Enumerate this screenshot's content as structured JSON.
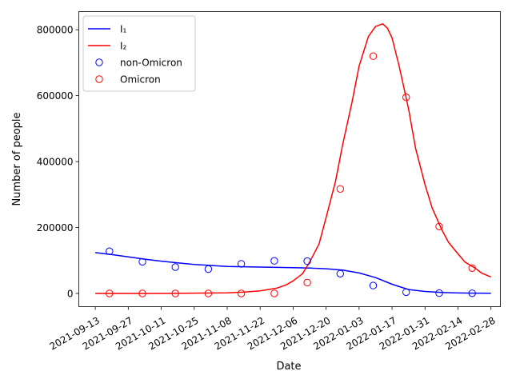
{
  "chart_data": {
    "type": "line",
    "xlabel": "Date",
    "ylabel": "Number of people",
    "xlim": [
      "2021-09-06",
      "2022-03-04"
    ],
    "ylim": [
      -40000,
      855000
    ],
    "x_ticks": [
      "2021-09-13",
      "2021-09-27",
      "2021-10-11",
      "2021-10-25",
      "2021-11-08",
      "2021-11-22",
      "2021-12-06",
      "2021-12-20",
      "2022-01-03",
      "2022-01-17",
      "2022-01-31",
      "2022-02-14",
      "2022-02-28"
    ],
    "y_ticks": [
      0,
      200000,
      400000,
      600000,
      800000
    ],
    "y_tick_labels": [
      "0",
      "200000",
      "400000",
      "600000",
      "800000"
    ],
    "grid": false,
    "legend_position": "upper-left",
    "legend": [
      {
        "label": "I₁",
        "marker": "line",
        "color": "#0000ff"
      },
      {
        "label": "I₂",
        "marker": "line",
        "color": "#ff0000"
      },
      {
        "label": "non-Omicron",
        "marker": "circle",
        "color": "#0000ff"
      },
      {
        "label": "Omicron",
        "marker": "circle",
        "color": "#ff0000"
      }
    ],
    "series": [
      {
        "name": "I₁",
        "kind": "line",
        "color": "#0000ff",
        "x": [
          "2021-09-13",
          "2021-09-20",
          "2021-09-27",
          "2021-10-04",
          "2021-10-11",
          "2021-10-18",
          "2021-10-25",
          "2021-11-01",
          "2021-11-08",
          "2021-11-15",
          "2021-11-22",
          "2021-11-29",
          "2021-12-06",
          "2021-12-13",
          "2021-12-20",
          "2021-12-27",
          "2022-01-03",
          "2022-01-10",
          "2022-01-17",
          "2022-01-24",
          "2022-01-31",
          "2022-02-07",
          "2022-02-14",
          "2022-02-21",
          "2022-02-28"
        ],
        "y": [
          124000,
          118000,
          111000,
          104000,
          98000,
          93000,
          88000,
          85000,
          82000,
          81000,
          80000,
          79000,
          78000,
          77000,
          75000,
          71000,
          62000,
          48000,
          28000,
          12000,
          6000,
          3000,
          1500,
          1000,
          500
        ]
      },
      {
        "name": "I₂",
        "kind": "line",
        "color": "#ff0000",
        "x": [
          "2021-09-13",
          "2021-10-11",
          "2021-11-08",
          "2021-11-15",
          "2021-11-22",
          "2021-11-29",
          "2021-12-03",
          "2021-12-06",
          "2021-12-10",
          "2021-12-13",
          "2021-12-17",
          "2021-12-20",
          "2021-12-24",
          "2021-12-27",
          "2021-12-31",
          "2022-01-03",
          "2022-01-07",
          "2022-01-10",
          "2022-01-13",
          "2022-01-15",
          "2022-01-17",
          "2022-01-20",
          "2022-01-24",
          "2022-01-27",
          "2022-01-31",
          "2022-02-03",
          "2022-02-07",
          "2022-02-10",
          "2022-02-14",
          "2022-02-17",
          "2022-02-21",
          "2022-02-24",
          "2022-02-28"
        ],
        "y": [
          0,
          0,
          2000,
          4000,
          8000,
          16000,
          26000,
          38000,
          60000,
          95000,
          150000,
          230000,
          340000,
          450000,
          580000,
          690000,
          780000,
          810000,
          818000,
          805000,
          775000,
          690000,
          560000,
          440000,
          330000,
          260000,
          195000,
          155000,
          120000,
          95000,
          78000,
          62000,
          50000
        ]
      },
      {
        "name": "non-Omicron",
        "kind": "scatter",
        "color": "#0000ff",
        "x": [
          "2021-09-19",
          "2021-10-03",
          "2021-10-17",
          "2021-10-31",
          "2021-11-14",
          "2021-11-28",
          "2021-12-12",
          "2021-12-26",
          "2022-01-09",
          "2022-01-23",
          "2022-02-06",
          "2022-02-20"
        ],
        "y": [
          128000,
          96000,
          80000,
          74000,
          90000,
          99000,
          98000,
          60000,
          24000,
          4000,
          1000,
          500
        ]
      },
      {
        "name": "Omicron",
        "kind": "scatter",
        "color": "#ff0000",
        "x": [
          "2021-09-19",
          "2021-10-03",
          "2021-10-17",
          "2021-10-31",
          "2021-11-14",
          "2021-11-28",
          "2021-12-12",
          "2021-12-26",
          "2022-01-09",
          "2022-01-23",
          "2022-02-06",
          "2022-02-20"
        ],
        "y": [
          0,
          0,
          0,
          0,
          0,
          0,
          33000,
          317000,
          720000,
          595000,
          203000,
          77000
        ]
      }
    ]
  }
}
